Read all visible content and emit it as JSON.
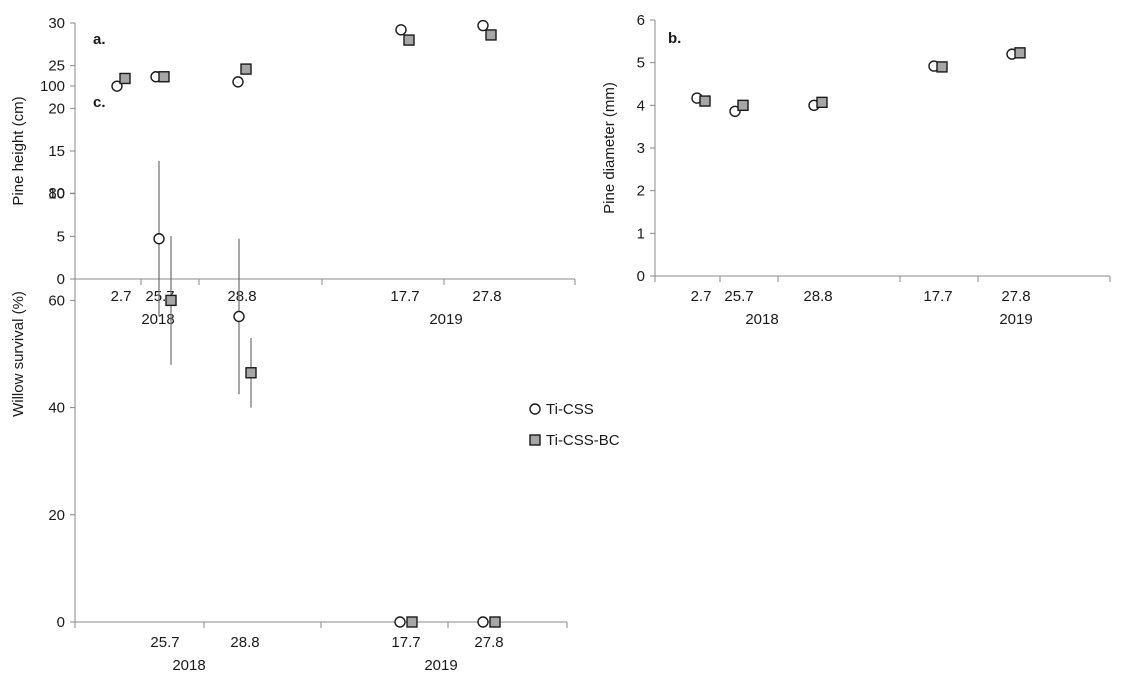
{
  "chart_data": [
    {
      "id": "a",
      "type": "scatter",
      "panel_label": "a.",
      "ylabel": "Pine height (cm)",
      "ylim": [
        0,
        30
      ],
      "yticks": [
        0,
        5,
        10,
        15,
        20,
        25,
        30
      ],
      "x_labels": [
        "2.7",
        "25.7",
        "28.8",
        "17.7",
        "27.8"
      ],
      "groups": [
        {
          "label": "2018",
          "dates": [
            "2.7",
            "25.7",
            "28.8"
          ]
        },
        {
          "label": "2019",
          "dates": [
            "17.7",
            "27.8"
          ]
        }
      ],
      "grid": false,
      "series": [
        {
          "name": "Ti-CSS",
          "marker": "circle",
          "values": [
            22.6,
            23.7,
            23.1,
            29.2,
            29.7
          ]
        },
        {
          "name": "Ti-CSS-BC",
          "marker": "square",
          "values": [
            23.5,
            23.7,
            24.6,
            28.0,
            28.6
          ]
        }
      ]
    },
    {
      "id": "b",
      "type": "scatter",
      "panel_label": "b.",
      "ylabel": "Pine diameter (mm)",
      "ylim": [
        0,
        6
      ],
      "yticks": [
        0,
        1,
        2,
        3,
        4,
        5,
        6
      ],
      "x_labels": [
        "2.7",
        "25.7",
        "28.8",
        "17.7",
        "27.8"
      ],
      "groups": [
        {
          "label": "2018",
          "dates": [
            "2.7",
            "25.7",
            "28.8"
          ]
        },
        {
          "label": "2019",
          "dates": [
            "17.7",
            "27.8"
          ]
        }
      ],
      "grid": false,
      "series": [
        {
          "name": "Ti-CSS",
          "marker": "circle",
          "values": [
            4.17,
            3.86,
            4.0,
            4.92,
            5.2
          ]
        },
        {
          "name": "Ti-CSS-BC",
          "marker": "square",
          "values": [
            4.1,
            4.0,
            4.07,
            4.9,
            5.23
          ]
        }
      ]
    },
    {
      "id": "c",
      "type": "scatter",
      "panel_label": "c.",
      "ylabel": "Willow survival (%)",
      "ylim": [
        0,
        100
      ],
      "yticks": [
        0,
        20,
        40,
        60,
        80,
        100
      ],
      "x_labels": [
        "25.7",
        "28.8",
        "17.7",
        "27.8"
      ],
      "groups": [
        {
          "label": "2018",
          "dates": [
            "25.7",
            "28.8"
          ]
        },
        {
          "label": "2019",
          "dates": [
            "17.7",
            "27.8"
          ]
        }
      ],
      "grid": false,
      "legend_position": "right",
      "series": [
        {
          "name": "Ti-CSS",
          "marker": "circle",
          "values": [
            71.5,
            57.0,
            0,
            0
          ],
          "error": [
            14.5,
            14.5,
            0,
            0
          ]
        },
        {
          "name": "Ti-CSS-BC",
          "marker": "square",
          "values": [
            60.0,
            46.5,
            0,
            0
          ],
          "error": [
            12.0,
            6.5,
            0,
            0
          ]
        }
      ]
    }
  ],
  "legend": [
    {
      "name": "Ti-CSS",
      "marker": "circle"
    },
    {
      "name": "Ti-CSS-BC",
      "marker": "square"
    }
  ],
  "colors": {
    "circle_fill": "#ffffff",
    "square_fill": "#a6a6a6",
    "marker_stroke": "#1a1a1a",
    "axis": "#888888",
    "error_bar": "#6e6e6e"
  }
}
